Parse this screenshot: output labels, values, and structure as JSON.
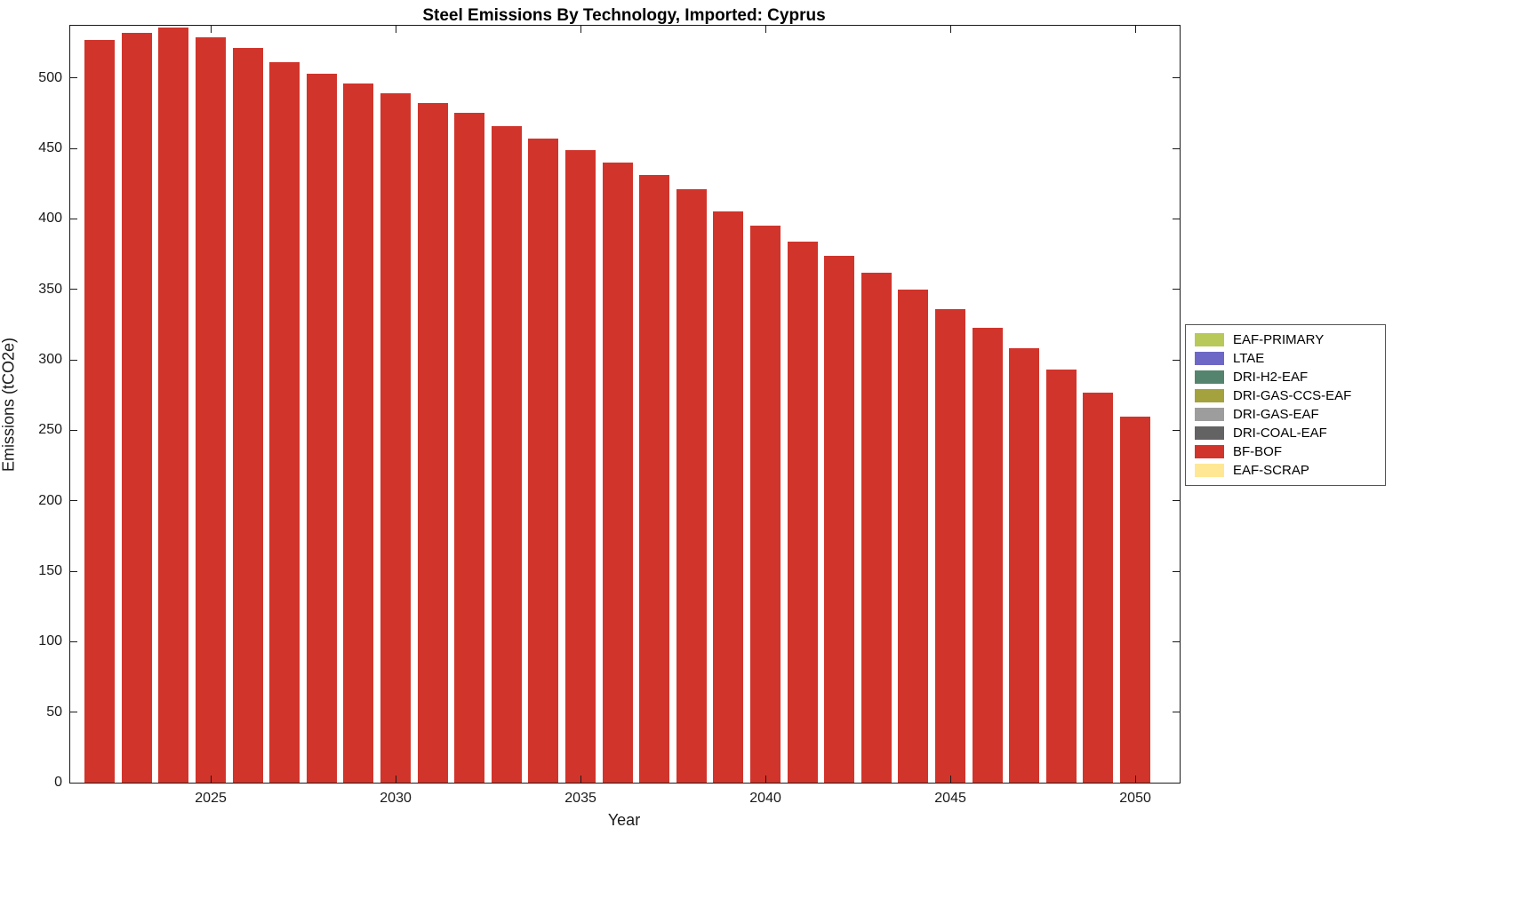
{
  "chart_data": {
    "type": "bar",
    "title": "Steel Emissions By Technology, Imported: Cyprus",
    "xlabel": "Year",
    "ylabel": "Emissions (tCO2e)",
    "x": [
      2022,
      2023,
      2024,
      2025,
      2026,
      2027,
      2028,
      2029,
      2030,
      2031,
      2032,
      2033,
      2034,
      2035,
      2036,
      2037,
      2038,
      2039,
      2040,
      2041,
      2042,
      2043,
      2044,
      2045,
      2046,
      2047,
      2048,
      2049,
      2050
    ],
    "series": [
      {
        "name": "BF-BOF",
        "color": "#d1342b",
        "values": [
          527,
          532,
          536,
          529,
          521,
          511,
          503,
          496,
          489,
          482,
          475,
          466,
          457,
          449,
          440,
          431,
          421,
          405,
          395,
          384,
          374,
          362,
          350,
          336,
          323,
          308,
          293,
          277,
          260
        ]
      }
    ],
    "xlim": [
      2021.2,
      2051.2
    ],
    "ylim": [
      0,
      537
    ],
    "bar_width": 0.82,
    "xticks": [
      2025,
      2030,
      2035,
      2040,
      2045,
      2050
    ],
    "yticks": [
      0,
      50,
      100,
      150,
      200,
      250,
      300,
      350,
      400,
      450,
      500
    ],
    "grid": false,
    "legend": {
      "position": "right-outside",
      "entries": [
        {
          "label": "EAF-PRIMARY",
          "color": "#b9c959"
        },
        {
          "label": "LTAE",
          "color": "#6d68c5"
        },
        {
          "label": "DRI-H2-EAF",
          "color": "#55846e"
        },
        {
          "label": "DRI-GAS-CCS-EAF",
          "color": "#a3a23e"
        },
        {
          "label": "DRI-GAS-EAF",
          "color": "#9d9d9d"
        },
        {
          "label": "DRI-COAL-EAF",
          "color": "#636363"
        },
        {
          "label": "BF-BOF",
          "color": "#d1342b"
        },
        {
          "label": "EAF-SCRAP",
          "color": "#ffe793"
        }
      ]
    }
  }
}
